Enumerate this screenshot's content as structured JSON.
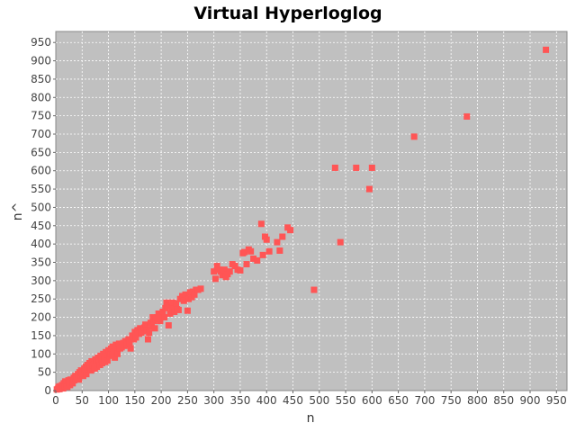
{
  "chart_data": {
    "type": "scatter",
    "title": "Virtual Hyperloglog",
    "xlabel": "n",
    "ylabel": "n^",
    "xlim": [
      0,
      970
    ],
    "ylim": [
      0,
      980
    ],
    "xticks": [
      0,
      50,
      100,
      150,
      200,
      250,
      300,
      350,
      400,
      450,
      500,
      550,
      600,
      650,
      700,
      750,
      800,
      850,
      900,
      950
    ],
    "yticks": [
      0,
      50,
      100,
      150,
      200,
      250,
      300,
      350,
      400,
      450,
      500,
      550,
      600,
      650,
      700,
      750,
      800,
      850,
      900,
      950
    ],
    "grid": true,
    "plot_background": "#c0c0c0",
    "grid_color": "#ffffff",
    "marker_color": "#ff5555",
    "marker": "square",
    "points": [
      [
        2,
        3
      ],
      [
        4,
        5
      ],
      [
        5,
        10
      ],
      [
        7,
        4
      ],
      [
        8,
        12
      ],
      [
        10,
        8
      ],
      [
        12,
        15
      ],
      [
        14,
        6
      ],
      [
        15,
        20
      ],
      [
        17,
        12
      ],
      [
        18,
        25
      ],
      [
        20,
        18
      ],
      [
        22,
        10
      ],
      [
        24,
        28
      ],
      [
        25,
        22
      ],
      [
        27,
        15
      ],
      [
        28,
        30
      ],
      [
        30,
        25
      ],
      [
        32,
        20
      ],
      [
        34,
        35
      ],
      [
        35,
        28
      ],
      [
        37,
        40
      ],
      [
        38,
        32
      ],
      [
        40,
        38
      ],
      [
        42,
        45
      ],
      [
        44,
        30
      ],
      [
        45,
        50
      ],
      [
        47,
        42
      ],
      [
        48,
        55
      ],
      [
        50,
        48
      ],
      [
        52,
        40
      ],
      [
        54,
        60
      ],
      [
        55,
        52
      ],
      [
        57,
        65
      ],
      [
        58,
        45
      ],
      [
        60,
        70
      ],
      [
        62,
        58
      ],
      [
        64,
        75
      ],
      [
        65,
        62
      ],
      [
        67,
        55
      ],
      [
        68,
        80
      ],
      [
        70,
        68
      ],
      [
        72,
        72
      ],
      [
        74,
        60
      ],
      [
        75,
        85
      ],
      [
        77,
        78
      ],
      [
        78,
        65
      ],
      [
        80,
        90
      ],
      [
        82,
        80
      ],
      [
        84,
        70
      ],
      [
        85,
        95
      ],
      [
        87,
        85
      ],
      [
        88,
        75
      ],
      [
        90,
        100
      ],
      [
        92,
        88
      ],
      [
        94,
        78
      ],
      [
        95,
        105
      ],
      [
        97,
        92
      ],
      [
        98,
        82
      ],
      [
        100,
        110
      ],
      [
        102,
        95
      ],
      [
        104,
        100
      ],
      [
        105,
        115
      ],
      [
        107,
        98
      ],
      [
        108,
        120
      ],
      [
        110,
        105
      ],
      [
        112,
        90
      ],
      [
        114,
        125
      ],
      [
        115,
        110
      ],
      [
        117,
        100
      ],
      [
        120,
        128
      ],
      [
        122,
        115
      ],
      [
        125,
        118
      ],
      [
        128,
        130
      ],
      [
        130,
        122
      ],
      [
        132,
        135
      ],
      [
        135,
        125
      ],
      [
        138,
        140
      ],
      [
        140,
        130
      ],
      [
        142,
        115
      ],
      [
        145,
        150
      ],
      [
        148,
        140
      ],
      [
        150,
        160
      ],
      [
        152,
        145
      ],
      [
        155,
        165
      ],
      [
        158,
        155
      ],
      [
        160,
        170
      ],
      [
        162,
        158
      ],
      [
        165,
        162
      ],
      [
        168,
        172
      ],
      [
        170,
        180
      ],
      [
        172,
        165
      ],
      [
        175,
        140
      ],
      [
        177,
        158
      ],
      [
        180,
        185
      ],
      [
        182,
        175
      ],
      [
        184,
        200
      ],
      [
        186,
        190
      ],
      [
        188,
        170
      ],
      [
        190,
        195
      ],
      [
        192,
        200
      ],
      [
        195,
        210
      ],
      [
        198,
        190
      ],
      [
        200,
        205
      ],
      [
        203,
        215
      ],
      [
        206,
        200
      ],
      [
        208,
        225
      ],
      [
        210,
        240
      ],
      [
        212,
        230
      ],
      [
        214,
        178
      ],
      [
        217,
        210
      ],
      [
        220,
        225
      ],
      [
        222,
        240
      ],
      [
        225,
        215
      ],
      [
        228,
        238
      ],
      [
        230,
        222
      ],
      [
        233,
        220
      ],
      [
        236,
        250
      ],
      [
        240,
        258
      ],
      [
        243,
        245
      ],
      [
        246,
        262
      ],
      [
        250,
        218
      ],
      [
        252,
        250
      ],
      [
        255,
        268
      ],
      [
        258,
        255
      ],
      [
        260,
        270
      ],
      [
        263,
        262
      ],
      [
        266,
        275
      ],
      [
        270,
        275
      ],
      [
        275,
        278
      ],
      [
        300,
        325
      ],
      [
        303,
        305
      ],
      [
        306,
        340
      ],
      [
        310,
        330
      ],
      [
        313,
        325
      ],
      [
        316,
        315
      ],
      [
        320,
        330
      ],
      [
        323,
        310
      ],
      [
        326,
        318
      ],
      [
        330,
        325
      ],
      [
        335,
        345
      ],
      [
        340,
        340
      ],
      [
        345,
        330
      ],
      [
        350,
        328
      ],
      [
        355,
        375
      ],
      [
        358,
        378
      ],
      [
        362,
        345
      ],
      [
        366,
        385
      ],
      [
        370,
        380
      ],
      [
        375,
        360
      ],
      [
        382,
        355
      ],
      [
        390,
        455
      ],
      [
        393,
        370
      ],
      [
        397,
        420
      ],
      [
        400,
        412
      ],
      [
        405,
        380
      ],
      [
        420,
        405
      ],
      [
        425,
        382
      ],
      [
        430,
        420
      ],
      [
        440,
        445
      ],
      [
        445,
        438
      ],
      [
        490,
        275
      ],
      [
        530,
        608
      ],
      [
        540,
        405
      ],
      [
        570,
        608
      ],
      [
        595,
        550
      ],
      [
        600,
        608
      ],
      [
        680,
        693
      ],
      [
        780,
        748
      ],
      [
        930,
        930
      ]
    ]
  }
}
